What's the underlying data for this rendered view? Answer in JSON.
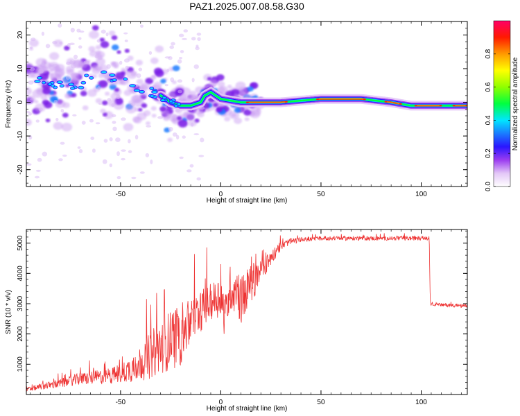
{
  "title": "PAZ1.2025.007.08.58.G30",
  "chart_data": [
    {
      "type": "heatmap",
      "name": "spectrogram",
      "xlabel": "Height of straight line (km)",
      "ylabel": "Frequency (Hz)",
      "xlim": [
        -97,
        123
      ],
      "ylim": [
        -25,
        24
      ],
      "xticks": [
        -50,
        0,
        50,
        100
      ],
      "yticks": [
        -20,
        -10,
        0,
        10,
        20
      ],
      "ridge": {
        "x": [
          -95,
          -90,
          -85,
          -80,
          -75,
          -70,
          -65,
          -60,
          -55,
          -50,
          -45,
          -40,
          -35,
          -30,
          -25,
          -20,
          -15,
          -10,
          -8,
          -5,
          0,
          5,
          10,
          15,
          30,
          50,
          70,
          85,
          95,
          110,
          123
        ],
        "freq": [
          6,
          7,
          5,
          6,
          5,
          5,
          8,
          9,
          8,
          7,
          5,
          4,
          3,
          2,
          0,
          -1,
          -1,
          0,
          2,
          3,
          1,
          0.5,
          0,
          0,
          0,
          1,
          1,
          0,
          -1,
          -1,
          -1
        ]
      },
      "colorbar": {
        "label": "Normalized spectral amplitude",
        "ticks": [
          0.0,
          0.2,
          0.4,
          0.6,
          0.8
        ],
        "tick_labels": [
          "0.0",
          "0.2",
          "0.4",
          "0.6",
          "0.8"
        ],
        "range": [
          0,
          1
        ]
      }
    },
    {
      "type": "line",
      "name": "snr",
      "xlabel": "Height of straight line (km)",
      "ylabel": "SNR (10 * v/v)",
      "xlim": [
        -97,
        123
      ],
      "ylim": [
        0,
        5450
      ],
      "xticks": [
        -50,
        0,
        50,
        100
      ],
      "yticks": [
        1000,
        2000,
        3000,
        4000,
        5000
      ],
      "color": "#ee3333",
      "series": [
        {
          "name": "SNR",
          "x": [
            -97,
            -90,
            -80,
            -70,
            -60,
            -50,
            -45,
            -40,
            -35,
            -30,
            -25,
            -20,
            -15,
            -10,
            -5,
            0,
            2,
            5,
            10,
            15,
            20,
            25,
            30,
            35,
            40,
            50,
            60,
            70,
            80,
            90,
            100,
            104,
            104.5,
            110,
            115,
            123
          ],
          "values": [
            150,
            250,
            350,
            500,
            550,
            650,
            800,
            1000,
            1200,
            1500,
            1700,
            1900,
            2300,
            2700,
            3000,
            3200,
            2500,
            3500,
            3000,
            3600,
            4000,
            4500,
            4900,
            5050,
            5100,
            5150,
            5150,
            5150,
            5150,
            5150,
            5150,
            5150,
            3000,
            2950,
            2950,
            2900
          ],
          "noise_amp": [
            80,
            100,
            150,
            200,
            250,
            300,
            450,
            600,
            800,
            900,
            1000,
            1100,
            800,
            700,
            600,
            700,
            700,
            800,
            800,
            700,
            400,
            250,
            150,
            100,
            80,
            70,
            70,
            70,
            70,
            70,
            70,
            70,
            60,
            60,
            60,
            60
          ]
        }
      ]
    }
  ]
}
